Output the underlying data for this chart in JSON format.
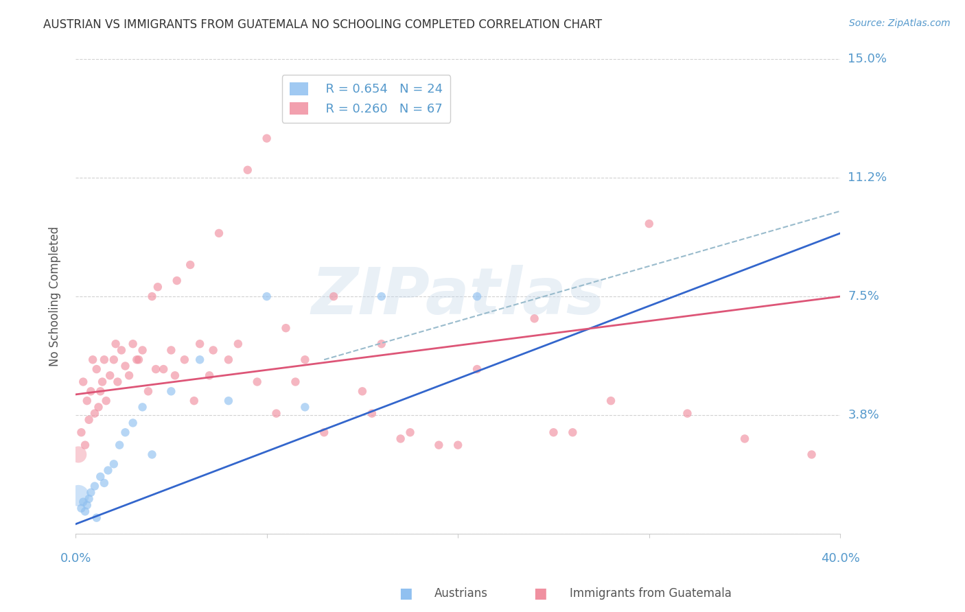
{
  "title": "AUSTRIAN VS IMMIGRANTS FROM GUATEMALA NO SCHOOLING COMPLETED CORRELATION CHART",
  "source": "Source: ZipAtlas.com",
  "ylabel": "No Schooling Completed",
  "xlim": [
    0.0,
    40.0
  ],
  "ylim": [
    0.0,
    15.0
  ],
  "yticks": [
    0.0,
    3.75,
    7.5,
    11.25,
    15.0
  ],
  "ytick_labels": [
    "",
    "3.8%",
    "7.5%",
    "11.2%",
    "15.0%"
  ],
  "xticks": [
    0.0,
    10.0,
    20.0,
    30.0,
    40.0
  ],
  "watermark": "ZIPatlas",
  "legend_blue_r": "R = 0.654",
  "legend_blue_n": "N = 24",
  "legend_pink_r": "R = 0.260",
  "legend_pink_n": "N = 67",
  "blue_color": "#90C0F0",
  "pink_color": "#F090A0",
  "blue_line_color": "#3366CC",
  "pink_line_color": "#DD5577",
  "dashed_line_color": "#99BBCC",
  "title_color": "#333333",
  "axis_label_color": "#555555",
  "tick_color": "#5599CC",
  "background_color": "#FFFFFF",
  "grid_color": "#CCCCCC",
  "blue_line_x0": 0.0,
  "blue_line_y0": 0.3,
  "blue_line_x1": 40.0,
  "blue_line_y1": 9.5,
  "pink_line_x0": 0.0,
  "pink_line_y0": 4.4,
  "pink_line_x1": 40.0,
  "pink_line_y1": 7.5,
  "dash_line_x0": 13.0,
  "dash_line_y0": 5.5,
  "dash_line_x1": 40.0,
  "dash_line_y1": 10.2,
  "austrians_x": [
    0.3,
    0.4,
    0.5,
    0.6,
    0.7,
    0.8,
    1.0,
    1.1,
    1.3,
    1.5,
    1.7,
    2.0,
    2.3,
    2.6,
    3.0,
    3.5,
    4.0,
    5.0,
    6.5,
    8.0,
    10.0,
    12.0,
    16.0,
    21.0
  ],
  "austrians_y": [
    0.8,
    1.0,
    0.7,
    0.9,
    1.1,
    1.3,
    1.5,
    0.5,
    1.8,
    1.6,
    2.0,
    2.2,
    2.8,
    3.2,
    3.5,
    4.0,
    2.5,
    4.5,
    5.5,
    4.2,
    7.5,
    4.0,
    7.5,
    7.5
  ],
  "austrians_sizes": [
    80,
    80,
    80,
    80,
    80,
    80,
    80,
    80,
    80,
    80,
    80,
    80,
    80,
    80,
    80,
    80,
    80,
    80,
    80,
    80,
    80,
    80,
    80,
    80
  ],
  "austrians_big_x": [
    0.15
  ],
  "austrians_big_y": [
    1.2
  ],
  "austrians_big_size": [
    500
  ],
  "guatemalans_x": [
    0.3,
    0.4,
    0.5,
    0.6,
    0.7,
    0.8,
    0.9,
    1.0,
    1.1,
    1.2,
    1.4,
    1.5,
    1.6,
    1.8,
    2.0,
    2.2,
    2.4,
    2.6,
    2.8,
    3.0,
    3.2,
    3.5,
    3.8,
    4.0,
    4.3,
    4.6,
    5.0,
    5.3,
    5.7,
    6.0,
    6.5,
    7.0,
    7.5,
    8.0,
    9.0,
    10.0,
    11.0,
    12.0,
    13.5,
    15.0,
    16.0,
    17.0,
    19.0,
    21.0,
    24.0,
    26.0,
    28.0,
    30.0,
    35.0,
    38.5,
    1.3,
    2.1,
    3.3,
    4.2,
    5.2,
    6.2,
    7.2,
    8.5,
    9.5,
    10.5,
    11.5,
    13.0,
    15.5,
    17.5,
    20.0,
    25.0,
    32.0
  ],
  "guatemalans_y": [
    3.2,
    4.8,
    2.8,
    4.2,
    3.6,
    4.5,
    5.5,
    3.8,
    5.2,
    4.0,
    4.8,
    5.5,
    4.2,
    5.0,
    5.5,
    4.8,
    5.8,
    5.3,
    5.0,
    6.0,
    5.5,
    5.8,
    4.5,
    7.5,
    7.8,
    5.2,
    5.8,
    8.0,
    5.5,
    8.5,
    6.0,
    5.0,
    9.5,
    5.5,
    11.5,
    12.5,
    6.5,
    5.5,
    7.5,
    4.5,
    6.0,
    3.0,
    2.8,
    5.2,
    6.8,
    3.2,
    4.2,
    9.8,
    3.0,
    2.5,
    4.5,
    6.0,
    5.5,
    5.2,
    5.0,
    4.2,
    5.8,
    6.0,
    4.8,
    3.8,
    4.8,
    3.2,
    3.8,
    3.2,
    2.8,
    3.2,
    3.8
  ],
  "guatemalans_big_x": [
    0.15
  ],
  "guatemalans_big_y": [
    2.5
  ],
  "guatemalans_big_size": [
    300
  ]
}
